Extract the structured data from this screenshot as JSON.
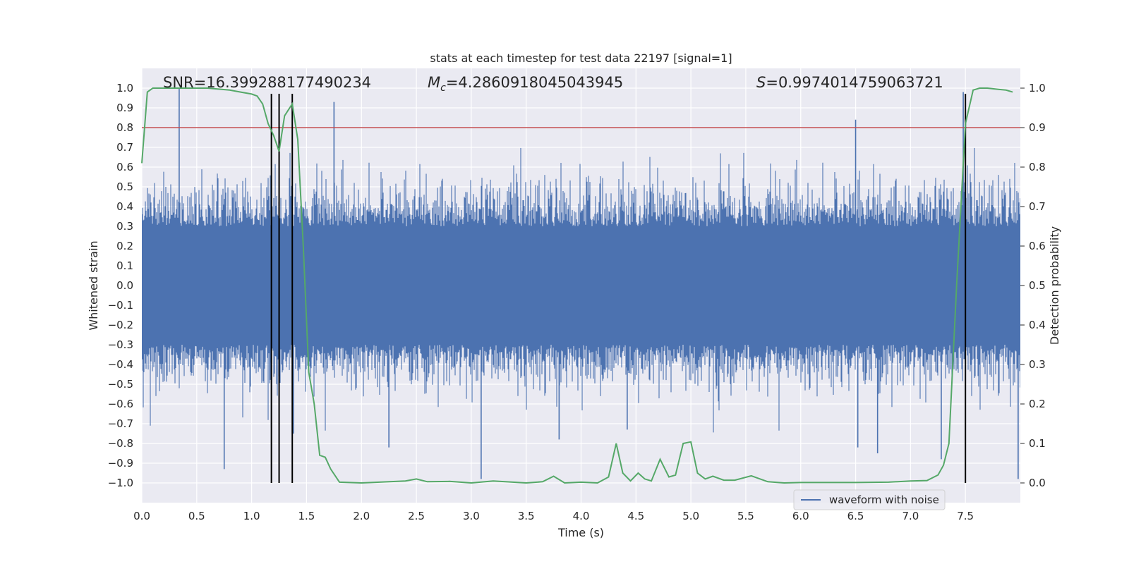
{
  "chart_data": {
    "type": "line",
    "title": "stats at each timestep for test data 22197 [signal=1]",
    "xlabel": "Time (s)",
    "ylabel": "Whitened strain",
    "y2label": "Detection probability",
    "xlim": [
      0.0,
      8.0
    ],
    "ylim": [
      -1.1,
      1.1
    ],
    "y2lim": [
      -0.05,
      1.05
    ],
    "xticks": [
      "0.0",
      "0.5",
      "1.0",
      "1.5",
      "2.0",
      "2.5",
      "3.0",
      "3.5",
      "4.0",
      "4.5",
      "5.0",
      "5.5",
      "6.0",
      "6.5",
      "7.0",
      "7.5"
    ],
    "yticks": [
      "1.0",
      "0.9",
      "0.8",
      "0.7",
      "0.6",
      "0.5",
      "0.4",
      "0.3",
      "0.2",
      "0.1",
      "0.0",
      "−0.1",
      "−0.2",
      "−0.3",
      "−0.4",
      "−0.5",
      "−0.6",
      "−0.7",
      "−0.8",
      "−0.9",
      "−1.0"
    ],
    "y2ticks": [
      "1.0",
      "0.9",
      "0.8",
      "0.7",
      "0.6",
      "0.5",
      "0.4",
      "0.3",
      "0.2",
      "0.1",
      "0.0"
    ],
    "annotations": {
      "snr": "SNR=16.399288177490234",
      "mc_prefix": "M",
      "mc_sub": "c",
      "mc_value": "=4.2860918045043945",
      "s_prefix": "S",
      "s_value": "=0.9974014759063721"
    },
    "threshold": 0.9,
    "vlines": [
      1.18,
      1.25,
      1.37,
      7.5
    ],
    "legend": [
      {
        "name": "waveform with noise",
        "color": "#4c72b0"
      }
    ],
    "series": [
      {
        "name": "waveform with noise",
        "color": "#4c72b0",
        "axis": "left",
        "description": "dense noisy strain, envelope roughly ±0.45 with spikes",
        "spikes": [
          {
            "x": 0.34,
            "y": 1.0
          },
          {
            "x": 0.75,
            "y": -0.93
          },
          {
            "x": 1.18,
            "y": -0.72
          },
          {
            "x": 1.38,
            "y": -0.75
          },
          {
            "x": 1.75,
            "y": 0.93
          },
          {
            "x": 2.25,
            "y": -0.82
          },
          {
            "x": 3.09,
            "y": -0.98
          },
          {
            "x": 3.8,
            "y": -0.78
          },
          {
            "x": 4.42,
            "y": -0.73
          },
          {
            "x": 6.5,
            "y": 0.84
          },
          {
            "x": 6.52,
            "y": -0.82
          },
          {
            "x": 6.7,
            "y": -0.85
          },
          {
            "x": 7.28,
            "y": -0.88
          },
          {
            "x": 7.48,
            "y": 0.98
          },
          {
            "x": 7.98,
            "y": -0.98
          }
        ]
      },
      {
        "name": "detection probability",
        "color": "#55a868",
        "axis": "right",
        "x": [
          0.0,
          0.05,
          0.1,
          0.2,
          0.4,
          0.6,
          0.8,
          0.9,
          1.0,
          1.05,
          1.1,
          1.15,
          1.2,
          1.25,
          1.3,
          1.37,
          1.42,
          1.47,
          1.52,
          1.57,
          1.62,
          1.67,
          1.72,
          1.8,
          2.0,
          2.4,
          2.5,
          2.6,
          2.8,
          3.0,
          3.2,
          3.5,
          3.65,
          3.75,
          3.85,
          4.0,
          4.15,
          4.25,
          4.32,
          4.38,
          4.45,
          4.52,
          4.58,
          4.64,
          4.72,
          4.8,
          4.86,
          4.93,
          5.0,
          5.06,
          5.13,
          5.2,
          5.3,
          5.4,
          5.55,
          5.7,
          5.85,
          6.0,
          6.5,
          6.8,
          7.0,
          7.15,
          7.25,
          7.3,
          7.35,
          7.42,
          7.5,
          7.57,
          7.63,
          7.7,
          7.8,
          7.87,
          7.93
        ],
        "y": [
          0.81,
          0.99,
          1.0,
          1.0,
          1.0,
          1.0,
          0.995,
          0.99,
          0.985,
          0.98,
          0.96,
          0.91,
          0.88,
          0.84,
          0.93,
          0.96,
          0.87,
          0.6,
          0.28,
          0.2,
          0.07,
          0.065,
          0.035,
          0.002,
          0.0,
          0.005,
          0.01,
          0.003,
          0.004,
          0.0,
          0.005,
          0.0,
          0.003,
          0.017,
          0.0,
          0.002,
          0.0,
          0.015,
          0.1,
          0.025,
          0.005,
          0.025,
          0.01,
          0.005,
          0.06,
          0.015,
          0.02,
          0.1,
          0.104,
          0.025,
          0.01,
          0.017,
          0.007,
          0.007,
          0.018,
          0.003,
          0.0,
          0.001,
          0.001,
          0.002,
          0.005,
          0.006,
          0.02,
          0.045,
          0.1,
          0.5,
          0.91,
          0.995,
          1.0,
          1.0,
          0.997,
          0.995,
          0.99
        ]
      }
    ]
  }
}
